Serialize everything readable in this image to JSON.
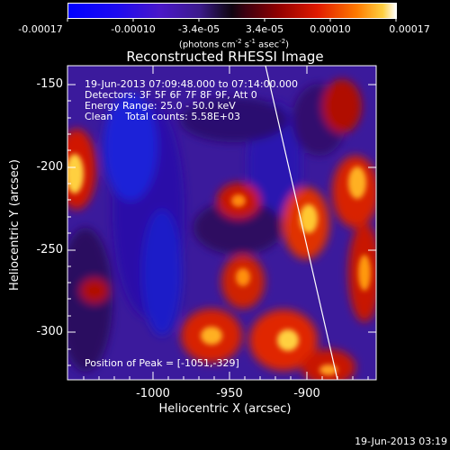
{
  "colorbar": {
    "tick_labels": [
      "-0.00017",
      "-0.00010",
      "-3.4e-05",
      "3.4e-05",
      "0.00010",
      "0.00017"
    ],
    "units": "(photons cm",
    "units_exp1": "-2",
    "units_mid": " s",
    "units_exp2": "-1",
    "units_end": " asec",
    "units_exp3": "-2",
    "units_close": ")"
  },
  "plot": {
    "title": "Reconstructed RHESSI Image",
    "xlabel": "Heliocentric X (arcsec)",
    "ylabel": "Heliocentric Y (arcsec)",
    "x_ticks": [
      "-1000",
      "-950",
      "-900"
    ],
    "y_ticks": [
      "-150",
      "-200",
      "-250",
      "-300"
    ],
    "xlim": [
      -1048,
      -872
    ],
    "ylim": [
      -330,
      -137
    ]
  },
  "annotations": {
    "time_range": "19-Jun-2013 07:09:48.000 to 07:14:00.000",
    "detectors": "Detectors: 3F 5F 6F 7F 8F 9F, Att 0",
    "energy": "Energy Range: 25.0 - 50.0 keV",
    "clean": "Clean    Total counts: 5.58E+03",
    "peak": "Position of Peak = [-1051,-329]"
  },
  "footer": {
    "timestamp": "19-Jun-2013 03:19"
  },
  "colors": {
    "background": "#000000",
    "limb_line": "#ffffff",
    "image_base": "#3b1a9c"
  }
}
